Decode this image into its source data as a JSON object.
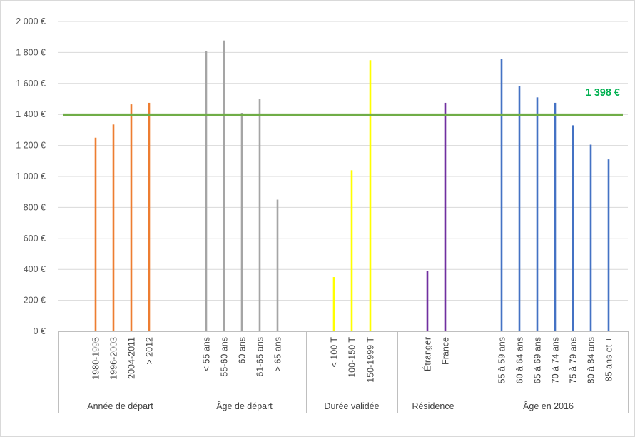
{
  "chart_data": {
    "type": "bar",
    "y_ticks": [
      "0 €",
      "200 €",
      "400 €",
      "600 €",
      "800 €",
      "1 000 €",
      "1 200 €",
      "1 400 €",
      "1 600 €",
      "1 800 €",
      "2 000 €"
    ],
    "ylim": [
      0,
      2000
    ],
    "grid": true,
    "reference_line": {
      "value": 1398,
      "label": "1 398 €",
      "color": "#70ad47",
      "label_color": "#00b050"
    },
    "groups": [
      {
        "name": "Année de départ",
        "color": "#ed7d31",
        "categories": [
          "1980-1995",
          "1996-2003",
          "2004-2011",
          "> 2012"
        ],
        "values": [
          1250,
          1335,
          1465,
          1475
        ]
      },
      {
        "name": "Âge de départ",
        "color": "#a5a5a5",
        "categories": [
          "< 55 ans",
          "55-60 ans",
          "60 ans",
          "61-65 ans",
          "> 65 ans"
        ],
        "values": [
          1808,
          1877,
          1410,
          1500,
          850
        ]
      },
      {
        "name": "Durée validée",
        "color": "#ffff00",
        "categories": [
          "< 100 T",
          "100-150 T",
          "150-1999 T"
        ],
        "values": [
          350,
          1040,
          1750
        ]
      },
      {
        "name": "Résidence",
        "color": "#7030a0",
        "categories": [
          "Étranger",
          "France"
        ],
        "values": [
          390,
          1475
        ]
      },
      {
        "name": "Âge en 2016",
        "color": "#4472c4",
        "categories": [
          "55 à 59 ans",
          "60 à 64 ans",
          "65 à 69 ans",
          "70 à 74 ans",
          "75 à 79 ans",
          "80 à 84 ans",
          "85 ans et +"
        ],
        "values": [
          1760,
          1583,
          1510,
          1475,
          1330,
          1205,
          1110
        ]
      }
    ]
  }
}
